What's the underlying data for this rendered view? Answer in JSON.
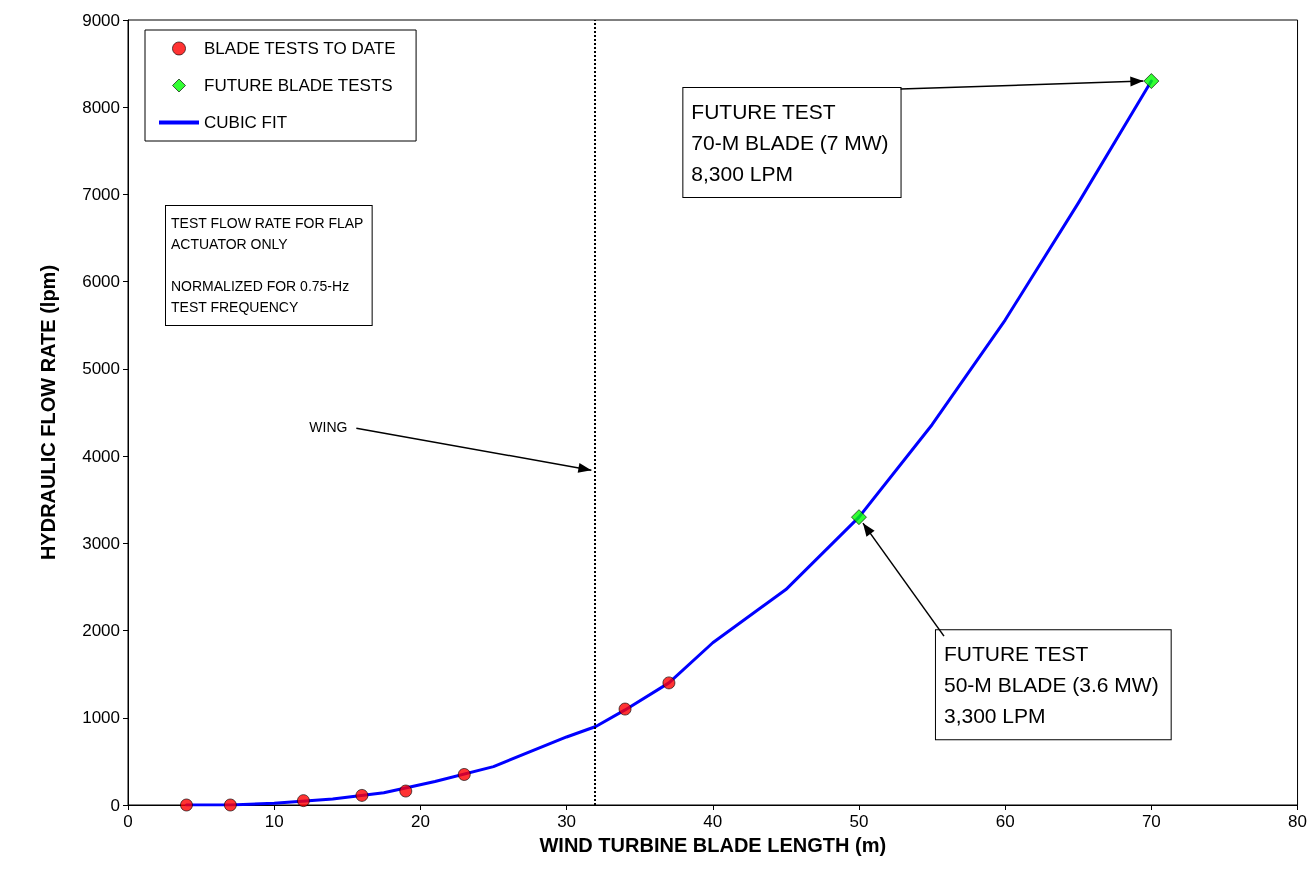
{
  "chart_data": {
    "type": "scatter",
    "xlabel": "WIND TURBINE BLADE LENGTH (m)",
    "ylabel": "HYDRAULIC FLOW RATE (lpm)",
    "xlim": [
      0,
      80
    ],
    "xticks": [
      0,
      10,
      20,
      30,
      40,
      50,
      60,
      70,
      80
    ],
    "ylim": [
      0,
      9000
    ],
    "yticks": [
      0,
      1000,
      2000,
      3000,
      4000,
      5000,
      6000,
      7000,
      8000,
      9000
    ],
    "grid": false,
    "legend": "top left",
    "series": [
      {
        "name": "BLADE TESTS TO DATE",
        "marker": "circle",
        "color": "#ff0000",
        "x": [
          4,
          7,
          12,
          16,
          19,
          23,
          34,
          37
        ],
        "values": [
          0,
          0,
          50,
          110,
          160,
          350,
          1100,
          1400
        ]
      },
      {
        "name": "FUTURE BLADE TESTS",
        "marker": "diamond",
        "color": "#00ff00",
        "x": [
          50,
          70
        ],
        "values": [
          3300,
          8300
        ]
      },
      {
        "name": "CUBIC FIT",
        "type": "line",
        "marker": "none",
        "color": "#0000ff",
        "x": [
          4,
          5,
          7,
          10,
          14,
          17.5,
          21,
          25,
          30,
          32,
          34,
          37,
          40,
          45,
          50,
          55,
          60,
          65,
          70
        ],
        "values": [
          0,
          0,
          0,
          20,
          70,
          140,
          270,
          440,
          780,
          900,
          1090,
          1400,
          1860,
          2470,
          3300,
          4360,
          5560,
          6900,
          8300
        ]
      }
    ],
    "ref_lines": [
      {
        "axis": "x",
        "value": 31.9,
        "label": "WING",
        "line_style": "dotted",
        "color": "#000000"
      }
    ],
    "annotations": [
      "TEST FLOW RATE FOR FLAP\nACTUATOR ONLY\n\nNORMALIZED FOR 0.75-Hz\nTEST FREQUENCY",
      {
        "text": "FUTURE TEST\n70-M BLADE (7 MW)\n8,300 LPM",
        "x": 70,
        "y": 8300
      },
      {
        "text": "FUTURE TEST\n50-M BLADE (3.6 MW)\n3,300 LPM",
        "x": 50,
        "y": 3300
      }
    ]
  }
}
